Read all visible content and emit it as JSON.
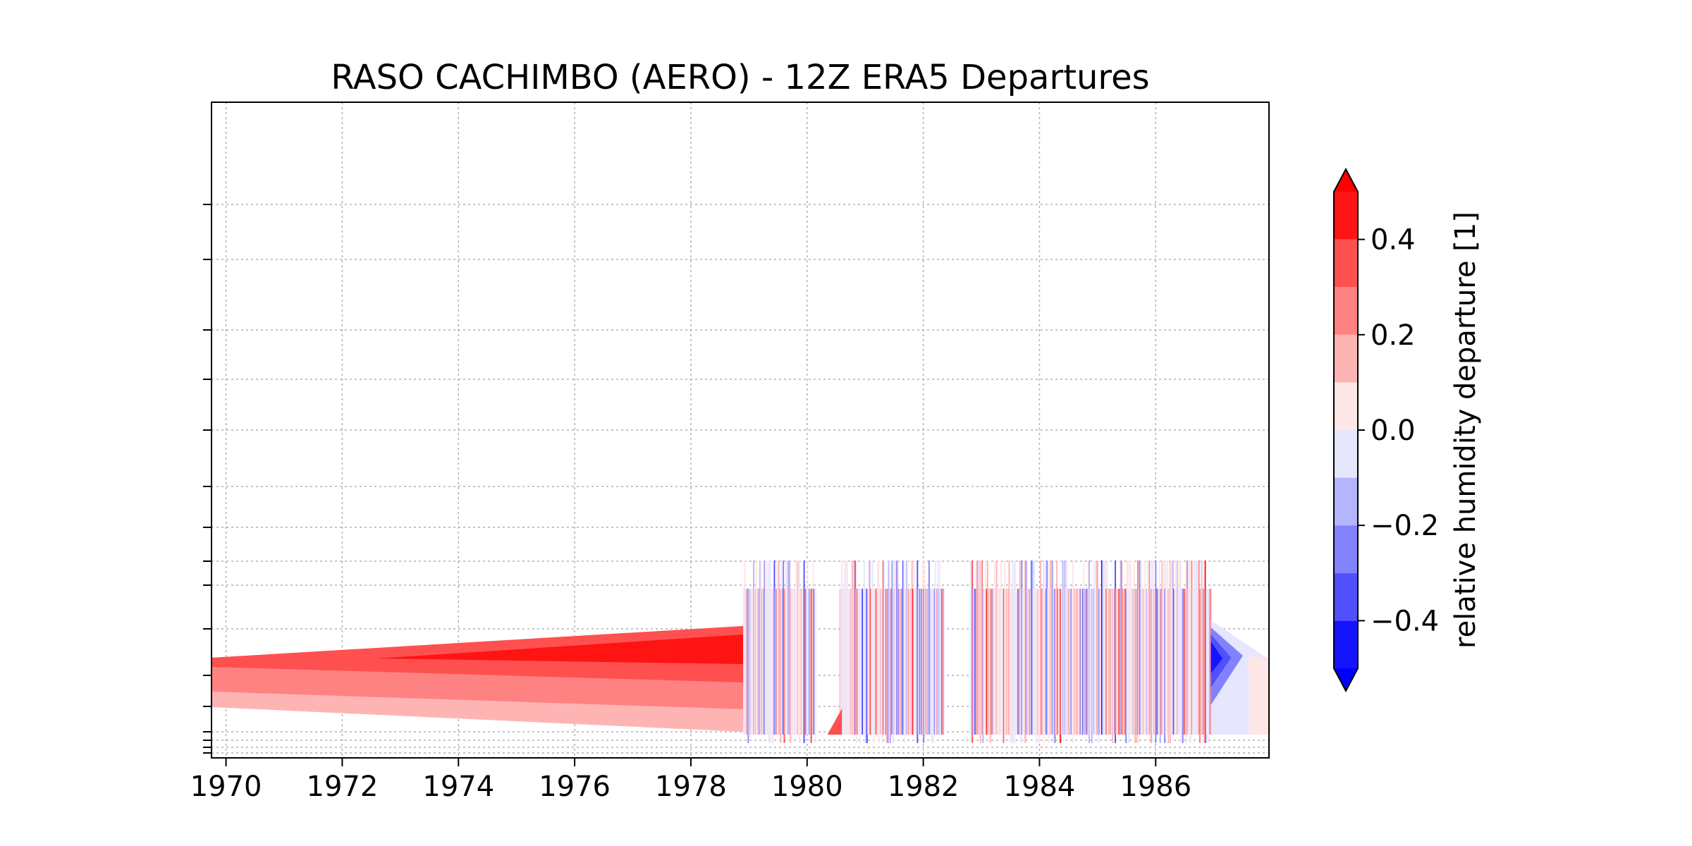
{
  "chart_data": {
    "type": "heatmap",
    "title": "RASO CACHIMBO (AERO) - 12Z ERA5 Departures",
    "xlabel": "",
    "ylabel": "",
    "x_tick_labels": [
      "1970",
      "1972",
      "1974",
      "1976",
      "1978",
      "1980",
      "1982",
      "1984",
      "1986"
    ],
    "x_tick_values": [
      1970,
      1972,
      1974,
      1976,
      1978,
      1980,
      1982,
      1984,
      1986
    ],
    "xlim": [
      1969.75,
      1987.95
    ],
    "y_scale": "log",
    "y_inverted": true,
    "y_tick_labels_shown": false,
    "grid": true,
    "colorbar": {
      "label": "relative humidity departure [1]",
      "extend": "both",
      "levels": [
        -0.5,
        -0.4,
        -0.3,
        -0.2,
        -0.1,
        0.0,
        0.1,
        0.2,
        0.3,
        0.4,
        0.5
      ],
      "colors": [
        "#1414ff",
        "#5050ff",
        "#8282ff",
        "#b4b4ff",
        "#e6e6ff",
        "#ffe6e6",
        "#ffb4b4",
        "#ff8282",
        "#ff5050",
        "#ff1414"
      ],
      "under_color": "#0000ff",
      "over_color": "#ff0000",
      "tick_values": [
        -0.4,
        -0.2,
        0.0,
        0.2,
        0.4
      ],
      "tick_labels": [
        "−0.4",
        "−0.2",
        "0.0",
        "0.2",
        "0.4"
      ]
    },
    "data_description_regions": [
      {
        "x_range": [
          1969.75,
          1978.9
        ],
        "value_band": [
          0.1,
          0.4
        ],
        "note": "sparse early records interpolated, positive departures"
      },
      {
        "x_range": [
          1978.9,
          1986.95
        ],
        "value_band": [
          -0.5,
          0.5
        ],
        "note": "dense mixed departures"
      },
      {
        "x_range": [
          1986.95,
          1987.95
        ],
        "value_band": [
          -0.5,
          0.1
        ],
        "note": "trailing negative departures"
      }
    ],
    "colors": {
      "axis": "#000000",
      "grid": "#b0b0b0"
    }
  }
}
